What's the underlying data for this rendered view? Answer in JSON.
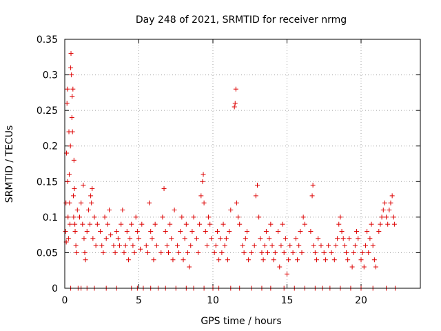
{
  "chart_data": {
    "type": "scatter",
    "title": "Day 248 of 2021, SRMTID for receiver nrmg",
    "xlabel": "GPS time / hours",
    "ylabel": "SRMTID / TECUs",
    "xlim": [
      0,
      24
    ],
    "ylim": [
      0,
      0.35
    ],
    "xticks": [
      0,
      5,
      10,
      15,
      20
    ],
    "xtick_labels": [
      "0",
      "5",
      "10",
      "15",
      "20"
    ],
    "yticks": [
      0,
      0.05,
      0.1,
      0.15,
      0.2,
      0.25,
      0.3,
      0.35
    ],
    "ytick_labels": [
      "0",
      "0.05",
      "0.1",
      "0.15",
      "0.2",
      "0.25",
      "0.3",
      "0.35"
    ],
    "grid": true,
    "marker": "+",
    "color": "#dd0000",
    "series": [
      {
        "name": "SRMTID",
        "points": [
          [
            0.05,
            0.08
          ],
          [
            0.08,
            0.12
          ],
          [
            0.1,
            0.065
          ],
          [
            0.12,
            0.19
          ],
          [
            0.15,
            0.26
          ],
          [
            0.18,
            0.28
          ],
          [
            0.2,
            0.15
          ],
          [
            0.22,
            0.1
          ],
          [
            0.25,
            0.07
          ],
          [
            0.28,
            0.22
          ],
          [
            0.3,
            0.16
          ],
          [
            0.32,
            0.12
          ],
          [
            0.35,
            0.09
          ],
          [
            0.38,
            0.2
          ],
          [
            0.4,
            0.31
          ],
          [
            0.42,
            0.33
          ],
          [
            0.45,
            0.3
          ],
          [
            0.48,
            0.24
          ],
          [
            0.5,
            0.27
          ],
          [
            0.52,
            0.22
          ],
          [
            0.55,
            0.28
          ],
          [
            0.58,
            0.13
          ],
          [
            0.6,
            0.1
          ],
          [
            0.62,
            0.18
          ],
          [
            0.65,
            0.14
          ],
          [
            0.68,
            0.09
          ],
          [
            0.7,
            0.08
          ],
          [
            0.75,
            0.06
          ],
          [
            0.8,
            0.05
          ],
          [
            0.85,
            0.11
          ],
          [
            1.0,
            0.1
          ],
          [
            1.1,
            0.12
          ],
          [
            1.2,
            0.09
          ],
          [
            1.25,
            0.145
          ],
          [
            1.3,
            0.07
          ],
          [
            1.35,
            0.05
          ],
          [
            1.4,
            0.04
          ],
          [
            1.5,
            0.08
          ],
          [
            1.6,
            0.11
          ],
          [
            1.7,
            0.09
          ],
          [
            1.75,
            0.13
          ],
          [
            1.8,
            0.12
          ],
          [
            1.85,
            0.14
          ],
          [
            1.9,
            0.07
          ],
          [
            2.0,
            0.1
          ],
          [
            2.1,
            0.06
          ],
          [
            2.2,
            0.09
          ],
          [
            2.4,
            0.08
          ],
          [
            2.5,
            0.06
          ],
          [
            2.6,
            0.05
          ],
          [
            2.7,
            0.1
          ],
          [
            2.8,
            0.07
          ],
          [
            2.9,
            0.09
          ],
          [
            3.0,
            0.11
          ],
          [
            3.1,
            0.075
          ],
          [
            3.3,
            0.06
          ],
          [
            3.4,
            0.05
          ],
          [
            3.5,
            0.08
          ],
          [
            3.6,
            0.07
          ],
          [
            3.7,
            0.06
          ],
          [
            3.8,
            0.09
          ],
          [
            3.9,
            0.11
          ],
          [
            4.0,
            0.05
          ],
          [
            4.1,
            0.06
          ],
          [
            4.2,
            0.08
          ],
          [
            4.3,
            0.04
          ],
          [
            4.4,
            0.07
          ],
          [
            4.5,
            0.09
          ],
          [
            4.6,
            0.06
          ],
          [
            4.7,
            0.05
          ],
          [
            4.8,
            0.1
          ],
          [
            4.9,
            0.08
          ],
          [
            5.0,
            0.07
          ],
          [
            5.1,
            0.055
          ],
          [
            5.2,
            0.09
          ],
          [
            5.5,
            0.06
          ],
          [
            5.6,
            0.05
          ],
          [
            5.7,
            0.12
          ],
          [
            5.8,
            0.08
          ],
          [
            5.9,
            0.07
          ],
          [
            6.0,
            0.04
          ],
          [
            6.1,
            0.09
          ],
          [
            6.2,
            0.06
          ],
          [
            6.5,
            0.05
          ],
          [
            6.6,
            0.1
          ],
          [
            6.7,
            0.14
          ],
          [
            6.8,
            0.08
          ],
          [
            6.9,
            0.06
          ],
          [
            7.0,
            0.05
          ],
          [
            7.1,
            0.09
          ],
          [
            7.2,
            0.07
          ],
          [
            7.3,
            0.04
          ],
          [
            7.4,
            0.11
          ],
          [
            7.6,
            0.06
          ],
          [
            7.7,
            0.05
          ],
          [
            7.8,
            0.08
          ],
          [
            7.9,
            0.1
          ],
          [
            8.0,
            0.04
          ],
          [
            8.1,
            0.07
          ],
          [
            8.2,
            0.09
          ],
          [
            8.3,
            0.05
          ],
          [
            8.4,
            0.03
          ],
          [
            8.5,
            0.06
          ],
          [
            8.6,
            0.08
          ],
          [
            8.7,
            0.1
          ],
          [
            8.9,
            0.07
          ],
          [
            9.0,
            0.05
          ],
          [
            9.1,
            0.09
          ],
          [
            9.2,
            0.13
          ],
          [
            9.3,
            0.15
          ],
          [
            9.35,
            0.16
          ],
          [
            9.4,
            0.12
          ],
          [
            9.5,
            0.08
          ],
          [
            9.6,
            0.06
          ],
          [
            9.7,
            0.1
          ],
          [
            9.8,
            0.09
          ],
          [
            9.9,
            0.07
          ],
          [
            10.1,
            0.05
          ],
          [
            10.2,
            0.06
          ],
          [
            10.3,
            0.08
          ],
          [
            10.4,
            0.04
          ],
          [
            10.5,
            0.07
          ],
          [
            10.6,
            0.05
          ],
          [
            10.7,
            0.09
          ],
          [
            10.8,
            0.06
          ],
          [
            10.9,
            0.07
          ],
          [
            11.0,
            0.04
          ],
          [
            11.1,
            0.08
          ],
          [
            11.2,
            0.11
          ],
          [
            11.45,
            0.255
          ],
          [
            11.5,
            0.26
          ],
          [
            11.55,
            0.28
          ],
          [
            11.6,
            0.12
          ],
          [
            11.7,
            0.1
          ],
          [
            11.8,
            0.09
          ],
          [
            12.0,
            0.06
          ],
          [
            12.1,
            0.05
          ],
          [
            12.2,
            0.07
          ],
          [
            12.3,
            0.08
          ],
          [
            12.4,
            0.04
          ],
          [
            12.6,
            0.05
          ],
          [
            12.8,
            0.06
          ],
          [
            12.9,
            0.13
          ],
          [
            13.0,
            0.145
          ],
          [
            13.1,
            0.1
          ],
          [
            13.2,
            0.07
          ],
          [
            13.3,
            0.05
          ],
          [
            13.4,
            0.04
          ],
          [
            13.5,
            0.06
          ],
          [
            13.6,
            0.08
          ],
          [
            13.7,
            0.05
          ],
          [
            13.8,
            0.07
          ],
          [
            13.9,
            0.09
          ],
          [
            14.0,
            0.06
          ],
          [
            14.1,
            0.04
          ],
          [
            14.2,
            0.05
          ],
          [
            14.4,
            0.08
          ],
          [
            14.5,
            0.03
          ],
          [
            14.6,
            0.06
          ],
          [
            14.7,
            0.09
          ],
          [
            14.8,
            0.05
          ],
          [
            14.9,
            0.07
          ],
          [
            15.0,
            0.02
          ],
          [
            15.1,
            0.04
          ],
          [
            15.2,
            0.06
          ],
          [
            15.4,
            0.05
          ],
          [
            15.6,
            0.07
          ],
          [
            15.7,
            0.04
          ],
          [
            15.8,
            0.06
          ],
          [
            15.9,
            0.08
          ],
          [
            16.0,
            0.05
          ],
          [
            16.1,
            0.1
          ],
          [
            16.2,
            0.09
          ],
          [
            16.6,
            0.08
          ],
          [
            16.7,
            0.13
          ],
          [
            16.75,
            0.145
          ],
          [
            16.8,
            0.06
          ],
          [
            16.9,
            0.05
          ],
          [
            17.0,
            0.04
          ],
          [
            17.1,
            0.07
          ],
          [
            17.3,
            0.06
          ],
          [
            17.5,
            0.05
          ],
          [
            17.6,
            0.04
          ],
          [
            17.8,
            0.06
          ],
          [
            18.0,
            0.05
          ],
          [
            18.2,
            0.04
          ],
          [
            18.3,
            0.06
          ],
          [
            18.4,
            0.07
          ],
          [
            18.5,
            0.09
          ],
          [
            18.6,
            0.1
          ],
          [
            18.7,
            0.08
          ],
          [
            18.8,
            0.07
          ],
          [
            18.9,
            0.06
          ],
          [
            19.0,
            0.05
          ],
          [
            19.1,
            0.04
          ],
          [
            19.2,
            0.07
          ],
          [
            19.4,
            0.03
          ],
          [
            19.5,
            0.05
          ],
          [
            19.6,
            0.06
          ],
          [
            19.7,
            0.08
          ],
          [
            19.8,
            0.07
          ],
          [
            20.0,
            0.04
          ],
          [
            20.1,
            0.05
          ],
          [
            20.2,
            0.03
          ],
          [
            20.3,
            0.06
          ],
          [
            20.4,
            0.08
          ],
          [
            20.5,
            0.05
          ],
          [
            20.6,
            0.07
          ],
          [
            20.7,
            0.09
          ],
          [
            20.8,
            0.06
          ],
          [
            20.9,
            0.04
          ],
          [
            21.0,
            0.03
          ],
          [
            21.2,
            0.08
          ],
          [
            21.3,
            0.09
          ],
          [
            21.4,
            0.1
          ],
          [
            21.5,
            0.11
          ],
          [
            21.6,
            0.12
          ],
          [
            21.7,
            0.1
          ],
          [
            21.8,
            0.09
          ],
          [
            21.9,
            0.11
          ],
          [
            22.0,
            0.12
          ],
          [
            22.1,
            0.13
          ],
          [
            22.2,
            0.1
          ],
          [
            22.25,
            0.09
          ],
          [
            0.4,
            0.0
          ],
          [
            0.9,
            0.0
          ],
          [
            1.1,
            0.0
          ],
          [
            1.5,
            0.0
          ],
          [
            2.0,
            0.0
          ],
          [
            2.8,
            0.0
          ],
          [
            3.5,
            0.0
          ],
          [
            4.5,
            0.0
          ],
          [
            4.9,
            0.0
          ],
          [
            5.3,
            0.0
          ],
          [
            5.8,
            0.0
          ],
          [
            6.3,
            0.0
          ],
          [
            6.8,
            0.0
          ],
          [
            7.5,
            0.0
          ],
          [
            8.2,
            0.0
          ],
          [
            8.7,
            0.0
          ],
          [
            9.4,
            0.0
          ],
          [
            10.0,
            0.0
          ],
          [
            10.4,
            0.0
          ],
          [
            11.2,
            0.0
          ],
          [
            11.8,
            0.0
          ],
          [
            12.6,
            0.0
          ],
          [
            13.3,
            0.0
          ],
          [
            13.9,
            0.0
          ],
          [
            14.8,
            0.0
          ],
          [
            15.5,
            0.0
          ],
          [
            16.2,
            0.0
          ],
          [
            16.9,
            0.0
          ],
          [
            17.4,
            0.0
          ],
          [
            17.9,
            0.0
          ],
          [
            18.6,
            0.0
          ],
          [
            19.3,
            0.0
          ],
          [
            20.0,
            0.0
          ],
          [
            20.8,
            0.0
          ],
          [
            21.7,
            0.0
          ],
          [
            22.3,
            0.0
          ]
        ]
      }
    ]
  }
}
